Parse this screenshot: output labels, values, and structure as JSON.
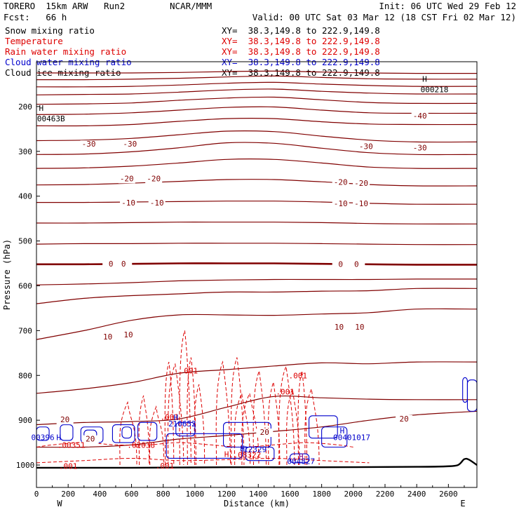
{
  "header": {
    "model": "TORERO  15km ARW   Run2",
    "org": "NCAR/MMM",
    "init": "Init: 06 UTC Wed 29 Feb 12",
    "fcst": "Fcst:   66 h",
    "valid": "Valid: 00 UTC Sat 03 Mar 12 (18 CST Fri 02 Mar 12)"
  },
  "fields": [
    {
      "name": "Snow mixing ratio",
      "xy": "XY=  38.3,149.8 to 222.9,149.8",
      "color": "#000000",
      "xy_color": "#000000"
    },
    {
      "name": "Temperature",
      "xy": "XY=  38.3,149.8 to 222.9,149.8",
      "color": "#dd0000",
      "xy_color": "#dd0000"
    },
    {
      "name": "Rain water mixing ratio",
      "xy": "XY=  38.3,149.8 to 222.9,149.8",
      "color": "#dd0000",
      "xy_color": "#dd0000"
    },
    {
      "name": "Cloud water mixing ratio",
      "xy": "XY=  38.3,149.8 to 222.9,149.8",
      "color": "#0000cc",
      "xy_color": "#0000cc"
    },
    {
      "name": "Cloud ice mixing ratio",
      "xy": "XY=  38.3,149.8 to 222.9,149.8",
      "color": "#000000",
      "xy_color": "#000000"
    }
  ],
  "chart_data": {
    "type": "cross-section",
    "xlabel": "Distance (km)",
    "ylabel": "Pressure (hPa)",
    "x_range": [
      0,
      2780
    ],
    "y_range": [
      1050,
      100
    ],
    "x_ticks": [
      0,
      200,
      400,
      600,
      800,
      1000,
      1200,
      1400,
      1600,
      1800,
      2000,
      2200,
      2400,
      2600
    ],
    "y_ticks": [
      200,
      300,
      400,
      500,
      600,
      700,
      800,
      900,
      1000
    ],
    "x_end_labels": [
      "W",
      "E"
    ],
    "colors": {
      "temperature": "#800000",
      "rain": "#dd0000",
      "cloud_water": "#0000cc",
      "cloud_ice": "#800080",
      "terrain": "#000000"
    },
    "isotherms": [
      {
        "pressure": [
          125,
          125,
          125,
          124,
          122,
          121,
          123,
          125,
          126,
          126
        ],
        "label": ""
      },
      {
        "pressure": [
          140,
          140,
          139,
          137,
          134,
          132,
          135,
          138,
          139,
          139
        ],
        "label": ""
      },
      {
        "pressure": [
          156,
          156,
          155,
          152,
          148,
          146,
          150,
          153,
          155,
          155
        ],
        "label": ""
      },
      {
        "pressure": [
          174,
          173,
          172,
          168,
          163,
          161,
          166,
          170,
          172,
          172
        ],
        "label": ""
      },
      {
        "pressure": [
          195,
          194,
          192,
          186,
          181,
          179,
          185,
          191,
          193,
          193
        ],
        "label": ""
      },
      {
        "pressure": [
          218,
          217,
          214,
          208,
          202,
          201,
          208,
          214,
          215,
          215
        ],
        "label": "-40"
      },
      {
        "pressure": [
          243,
          243,
          240,
          233,
          227,
          227,
          234,
          239,
          240,
          240
        ],
        "label": ""
      },
      {
        "pressure": [
          276,
          275,
          271,
          263,
          255,
          256,
          266,
          275,
          279,
          279
        ],
        "label": "-30"
      },
      {
        "pressure": [
          307,
          306,
          301,
          292,
          281,
          282,
          293,
          303,
          307,
          307
        ],
        "label": ""
      },
      {
        "pressure": [
          338,
          337,
          333,
          326,
          318,
          318,
          326,
          335,
          338,
          338
        ],
        "label": "-20"
      },
      {
        "pressure": [
          375,
          374,
          371,
          367,
          363,
          363,
          368,
          374,
          377,
          377
        ],
        "label": ""
      },
      {
        "pressure": [
          414,
          414,
          413,
          412,
          411,
          411,
          413,
          416,
          418,
          418
        ],
        "label": "-10"
      },
      {
        "pressure": [
          460,
          460,
          459,
          458,
          458,
          458,
          459,
          461,
          462,
          462
        ],
        "label": ""
      },
      {
        "pressure": [
          507,
          506,
          506,
          505,
          505,
          505,
          506,
          507,
          508,
          508
        ],
        "label": ""
      },
      {
        "pressure": [
          552,
          552,
          551,
          550,
          550,
          550,
          551,
          552,
          553,
          553
        ],
        "label": "0",
        "bold": true
      },
      {
        "pressure": [
          598,
          596,
          593,
          589,
          587,
          586,
          586,
          586,
          585,
          585
        ],
        "label": ""
      },
      {
        "pressure": [
          640,
          628,
          622,
          618,
          614,
          614,
          612,
          611,
          606,
          606
        ],
        "label": ""
      },
      {
        "pressure": [
          720,
          700,
          677,
          665,
          665,
          666,
          663,
          660,
          652,
          652
        ],
        "label": "10"
      },
      {
        "pressure": [
          840,
          830,
          816,
          795,
          787,
          779,
          772,
          774,
          770,
          770
        ],
        "label": ""
      },
      {
        "pressure": [
          910,
          905,
          903,
          897,
          871,
          847,
          850,
          853,
          854,
          854
        ],
        "label": ""
      },
      {
        "pressure": [
          960,
          960,
          955,
          942,
          934,
          925,
          915,
          900,
          888,
          880
        ],
        "label": "20"
      }
    ],
    "isotherm_x": [
      0,
      300,
      600,
      900,
      1200,
      1500,
      1800,
      2100,
      2400,
      2780
    ],
    "temperature_labels": [
      {
        "x": 330,
        "p": 285,
        "text": "-30"
      },
      {
        "x": 590,
        "p": 285,
        "text": "-30"
      },
      {
        "x": 2080,
        "p": 290,
        "text": "-30"
      },
      {
        "x": 2420,
        "p": 293,
        "text": "-30"
      },
      {
        "x": 2420,
        "p": 222,
        "text": "-40"
      },
      {
        "x": 570,
        "p": 362,
        "text": "-20"
      },
      {
        "x": 740,
        "p": 362,
        "text": "-20"
      },
      {
        "x": 1920,
        "p": 370,
        "text": "-20"
      },
      {
        "x": 2050,
        "p": 372,
        "text": "-20"
      },
      {
        "x": 580,
        "p": 416,
        "text": "-10"
      },
      {
        "x": 760,
        "p": 416,
        "text": "-10"
      },
      {
        "x": 1920,
        "p": 418,
        "text": "-10"
      },
      {
        "x": 2050,
        "p": 418,
        "text": "-10"
      },
      {
        "x": 470,
        "p": 552,
        "text": "0"
      },
      {
        "x": 550,
        "p": 552,
        "text": "0"
      },
      {
        "x": 1920,
        "p": 553,
        "text": "0"
      },
      {
        "x": 2020,
        "p": 553,
        "text": "0"
      },
      {
        "x": 450,
        "p": 715,
        "text": "10"
      },
      {
        "x": 580,
        "p": 710,
        "text": "10"
      },
      {
        "x": 1910,
        "p": 693,
        "text": "10"
      },
      {
        "x": 2040,
        "p": 693,
        "text": "10"
      },
      {
        "x": 180,
        "p": 900,
        "text": "20"
      },
      {
        "x": 340,
        "p": 943,
        "text": "20"
      },
      {
        "x": 1440,
        "p": 928,
        "text": "20"
      },
      {
        "x": 2320,
        "p": 898,
        "text": "20"
      }
    ],
    "rain_labels": [
      {
        "x": 960,
        "p": 791,
        "text": ".001"
      },
      {
        "x": 1650,
        "p": 802,
        "text": ".001"
      },
      {
        "x": 1570,
        "p": 838,
        "text": ".001"
      },
      {
        "x": 840,
        "p": 894,
        "text": ".001"
      },
      {
        "x": 220,
        "p": 957,
        "text": ".00351"
      },
      {
        "x": 660,
        "p": 957,
        "text": ".02038"
      },
      {
        "x": 1330,
        "p": 979,
        "text": ".08322"
      },
      {
        "x": 200,
        "p": 1004,
        "text": ".001"
      },
      {
        "x": 810,
        "p": 1003,
        "text": ".001"
      }
    ],
    "cloud_water_labels": [
      {
        "x": 920,
        "p": 909,
        "text": "210652"
      },
      {
        "x": 1380,
        "p": 966,
        "text": "12329"
      },
      {
        "x": 40,
        "p": 940,
        "text": "00396"
      },
      {
        "x": 1990,
        "p": 940,
        "text": "00401017"
      },
      {
        "x": 1670,
        "p": 993,
        "text": "004827"
      }
    ],
    "highs": [
      {
        "x": 30,
        "p": 205,
        "text": "H",
        "value": "00463B",
        "color": "#000000"
      },
      {
        "x": 2450,
        "p": 140,
        "text": "H",
        "value": "000218",
        "color": "#000000"
      },
      {
        "x": 880,
        "p": 895,
        "text": "H",
        "color": "#0000cc"
      },
      {
        "x": 140,
        "p": 940,
        "text": "H",
        "color": "#0000cc"
      },
      {
        "x": 1200,
        "p": 977,
        "text": "H",
        "color": "#dd0000"
      },
      {
        "x": 1300,
        "p": 965,
        "text": "H",
        "color": "#0000cc"
      },
      {
        "x": 1670,
        "p": 982,
        "text": "H",
        "color": "#800080"
      },
      {
        "x": 1930,
        "p": 925,
        "text": "H",
        "color": "#0000cc"
      }
    ],
    "terrain": {
      "x": [
        0,
        600,
        1200,
        1800,
        2400,
        2580,
        2660,
        2700,
        2730,
        2780
      ],
      "pressure": [
        1006,
        1006,
        1005,
        1005,
        1004,
        1003,
        1000,
        987,
        988,
        1000
      ]
    }
  }
}
